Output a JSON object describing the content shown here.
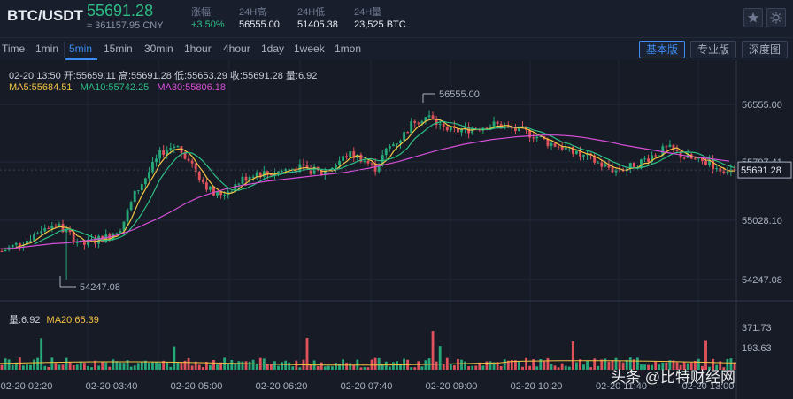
{
  "header": {
    "pair": "BTC/USDT",
    "last_price": "55691.28",
    "cny_value": "≈ 361157.95 CNY",
    "stats": [
      {
        "label": "涨幅",
        "value": "+3.50%",
        "color": "#2dbd85"
      },
      {
        "label": "24H高",
        "value": "56555.00"
      },
      {
        "label": "24H低",
        "value": "51405.38"
      },
      {
        "label": "24H量",
        "value": "23,525 BTC"
      }
    ],
    "icons": [
      "star-icon",
      "sun-icon"
    ]
  },
  "toolbar": {
    "timeframes": [
      "Time",
      "1min",
      "5min",
      "15min",
      "30min",
      "1hour",
      "4hour",
      "1day",
      "1week",
      "1mon"
    ],
    "active_timeframe": "5min",
    "views": [
      "基本版",
      "专业版",
      "深度图"
    ],
    "active_view": "基本版"
  },
  "info": {
    "ohlc_line": "02-20 13:50  开:55659.11  高:55691.28  低:55653.29  收:55691.28  量:6.92",
    "ma5": "MA5:55684.51",
    "ma10": "MA10:55742.25",
    "ma30": "MA30:55806.18",
    "vol_label": "量:6.92",
    "ma20": "MA20:65.39"
  },
  "colors": {
    "up": "#26a878",
    "down": "#e0525b",
    "ma5": "#f5c342",
    "ma10": "#2dbd85",
    "ma30": "#d64fd6",
    "accent": "#3d8cf2"
  },
  "watermark": "头条 @比特财经网",
  "chart_data": {
    "type": "candlestick",
    "price_axis_ticks": [
      "56555.00",
      "55797.41",
      "55028.10",
      "54247.08"
    ],
    "price_axis_values": [
      56555.0,
      55797.41,
      55028.1,
      54247.08
    ],
    "volume_axis_ticks": [
      "371.73",
      "193.63"
    ],
    "volume_axis_values": [
      371.73,
      193.63
    ],
    "time_labels": [
      "02-20 02:20",
      "02-20 03:40",
      "02-20 05:00",
      "02-20 06:20",
      "02-20 07:40",
      "02-20 09:00",
      "02-20 10:20",
      "02-20 11:40",
      "02-20 13:00"
    ],
    "current_price": "55691.28",
    "annotations": [
      {
        "label": "56555.00",
        "value": 56555.0
      },
      {
        "label": "54247.08",
        "value": 54247.08
      }
    ],
    "close_path": [
      54620,
      54700,
      54780,
      54920,
      54980,
      54850,
      54700,
      54760,
      54820,
      54950,
      55380,
      55650,
      55930,
      56020,
      55850,
      55560,
      55350,
      55420,
      55560,
      55660,
      55640,
      55680,
      55720,
      55700,
      55650,
      55760,
      55900,
      55850,
      55710,
      55980,
      56120,
      56350,
      56400,
      56250,
      56200,
      56230,
      56260,
      56290,
      56240,
      56200,
      56150,
      56050,
      56000,
      55900,
      55850,
      55760,
      55690,
      55720,
      55800,
      55900,
      55980,
      55880,
      55820,
      55780,
      55700,
      55691.28
    ],
    "ma30_path": [
      54650,
      54660,
      54680,
      54700,
      54720,
      54730,
      54750,
      54770,
      54800,
      54840,
      54900,
      54980,
      55060,
      55150,
      55250,
      55330,
      55390,
      55440,
      55480,
      55510,
      55540,
      55560,
      55580,
      55600,
      55620,
      55640,
      55660,
      55690,
      55720,
      55760,
      55800,
      55850,
      55900,
      55950,
      55990,
      56030,
      56060,
      56090,
      56110,
      56130,
      56140,
      56150,
      56150,
      56140,
      56120,
      56090,
      56060,
      56020,
      55990,
      55960,
      55930,
      55900,
      55870,
      55850,
      55830,
      55806.18
    ]
  }
}
